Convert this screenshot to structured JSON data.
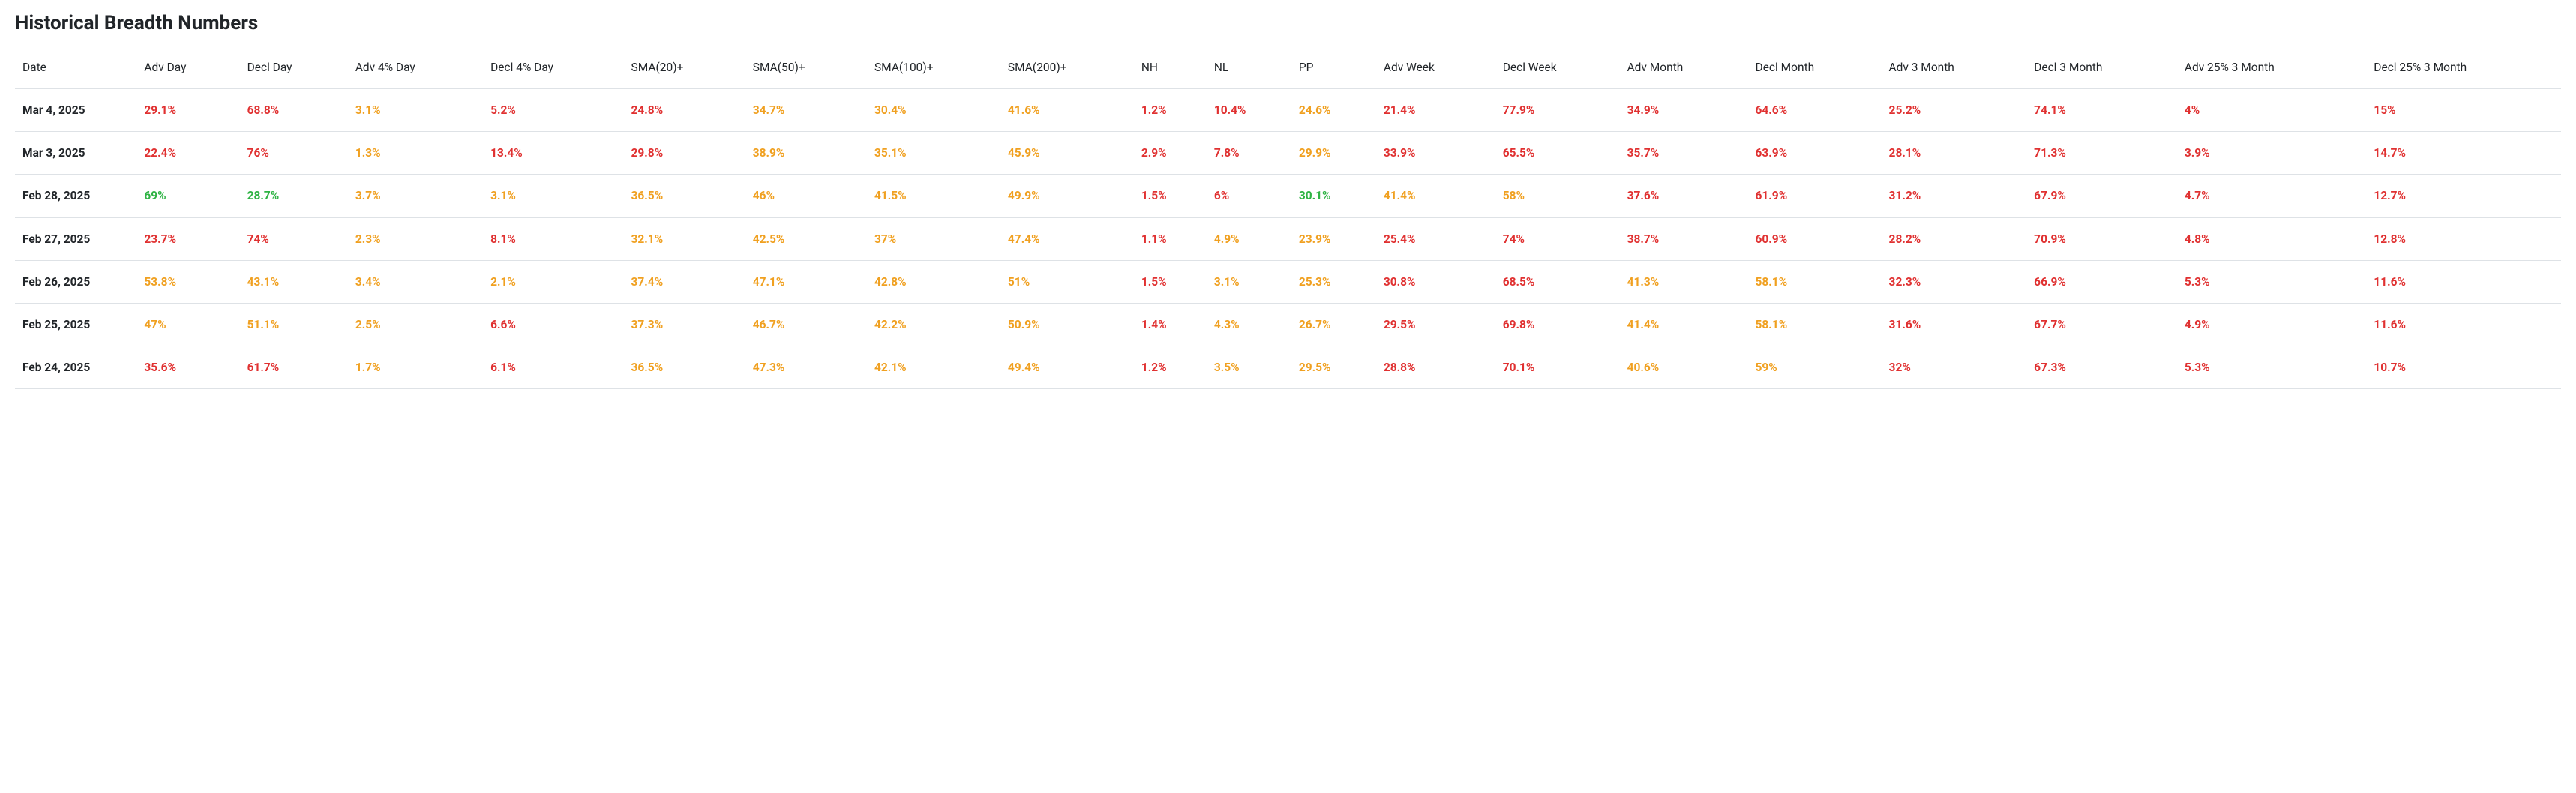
{
  "title": "Historical Breadth Numbers",
  "colors": {
    "red": "#e03131",
    "yellow": "#f0a020",
    "green": "#2fb344",
    "black": "#212529",
    "border": "#dee2e6",
    "background": "#ffffff"
  },
  "table": {
    "columns": [
      {
        "key": "date",
        "label": "Date"
      },
      {
        "key": "adv_day",
        "label": "Adv Day"
      },
      {
        "key": "decl_day",
        "label": "Decl Day"
      },
      {
        "key": "adv_4_day",
        "label": "Adv 4% Day"
      },
      {
        "key": "decl_4_day",
        "label": "Decl 4% Day"
      },
      {
        "key": "sma20",
        "label": "SMA(20)+"
      },
      {
        "key": "sma50",
        "label": "SMA(50)+"
      },
      {
        "key": "sma100",
        "label": "SMA(100)+"
      },
      {
        "key": "sma200",
        "label": "SMA(200)+"
      },
      {
        "key": "nh",
        "label": "NH"
      },
      {
        "key": "nl",
        "label": "NL"
      },
      {
        "key": "pp",
        "label": "PP"
      },
      {
        "key": "adv_week",
        "label": "Adv Week"
      },
      {
        "key": "decl_week",
        "label": "Decl Week"
      },
      {
        "key": "adv_month",
        "label": "Adv Month"
      },
      {
        "key": "decl_month",
        "label": "Decl Month"
      },
      {
        "key": "adv_3m",
        "label": "Adv 3 Month"
      },
      {
        "key": "decl_3m",
        "label": "Decl 3 Month"
      },
      {
        "key": "adv_25_3m",
        "label": "Adv 25% 3 Month"
      },
      {
        "key": "decl_25_3m",
        "label": "Decl 25% 3 Month"
      }
    ],
    "rows": [
      {
        "date": "Mar 4, 2025",
        "cells": [
          {
            "v": "29.1%",
            "c": "red"
          },
          {
            "v": "68.8%",
            "c": "red"
          },
          {
            "v": "3.1%",
            "c": "yellow"
          },
          {
            "v": "5.2%",
            "c": "red"
          },
          {
            "v": "24.8%",
            "c": "red"
          },
          {
            "v": "34.7%",
            "c": "yellow"
          },
          {
            "v": "30.4%",
            "c": "yellow"
          },
          {
            "v": "41.6%",
            "c": "yellow"
          },
          {
            "v": "1.2%",
            "c": "red"
          },
          {
            "v": "10.4%",
            "c": "red"
          },
          {
            "v": "24.6%",
            "c": "yellow"
          },
          {
            "v": "21.4%",
            "c": "red"
          },
          {
            "v": "77.9%",
            "c": "red"
          },
          {
            "v": "34.9%",
            "c": "red"
          },
          {
            "v": "64.6%",
            "c": "red"
          },
          {
            "v": "25.2%",
            "c": "red"
          },
          {
            "v": "74.1%",
            "c": "red"
          },
          {
            "v": "4%",
            "c": "red"
          },
          {
            "v": "15%",
            "c": "red"
          }
        ]
      },
      {
        "date": "Mar 3, 2025",
        "cells": [
          {
            "v": "22.4%",
            "c": "red"
          },
          {
            "v": "76%",
            "c": "red"
          },
          {
            "v": "1.3%",
            "c": "yellow"
          },
          {
            "v": "13.4%",
            "c": "red"
          },
          {
            "v": "29.8%",
            "c": "red"
          },
          {
            "v": "38.9%",
            "c": "yellow"
          },
          {
            "v": "35.1%",
            "c": "yellow"
          },
          {
            "v": "45.9%",
            "c": "yellow"
          },
          {
            "v": "2.9%",
            "c": "red"
          },
          {
            "v": "7.8%",
            "c": "red"
          },
          {
            "v": "29.9%",
            "c": "yellow"
          },
          {
            "v": "33.9%",
            "c": "red"
          },
          {
            "v": "65.5%",
            "c": "red"
          },
          {
            "v": "35.7%",
            "c": "red"
          },
          {
            "v": "63.9%",
            "c": "red"
          },
          {
            "v": "28.1%",
            "c": "red"
          },
          {
            "v": "71.3%",
            "c": "red"
          },
          {
            "v": "3.9%",
            "c": "red"
          },
          {
            "v": "14.7%",
            "c": "red"
          }
        ]
      },
      {
        "date": "Feb 28, 2025",
        "cells": [
          {
            "v": "69%",
            "c": "green"
          },
          {
            "v": "28.7%",
            "c": "green"
          },
          {
            "v": "3.7%",
            "c": "yellow"
          },
          {
            "v": "3.1%",
            "c": "yellow"
          },
          {
            "v": "36.5%",
            "c": "yellow"
          },
          {
            "v": "46%",
            "c": "yellow"
          },
          {
            "v": "41.5%",
            "c": "yellow"
          },
          {
            "v": "49.9%",
            "c": "yellow"
          },
          {
            "v": "1.5%",
            "c": "red"
          },
          {
            "v": "6%",
            "c": "red"
          },
          {
            "v": "30.1%",
            "c": "green"
          },
          {
            "v": "41.4%",
            "c": "yellow"
          },
          {
            "v": "58%",
            "c": "yellow"
          },
          {
            "v": "37.6%",
            "c": "red"
          },
          {
            "v": "61.9%",
            "c": "red"
          },
          {
            "v": "31.2%",
            "c": "red"
          },
          {
            "v": "67.9%",
            "c": "red"
          },
          {
            "v": "4.7%",
            "c": "red"
          },
          {
            "v": "12.7%",
            "c": "red"
          }
        ]
      },
      {
        "date": "Feb 27, 2025",
        "cells": [
          {
            "v": "23.7%",
            "c": "red"
          },
          {
            "v": "74%",
            "c": "red"
          },
          {
            "v": "2.3%",
            "c": "yellow"
          },
          {
            "v": "8.1%",
            "c": "red"
          },
          {
            "v": "32.1%",
            "c": "yellow"
          },
          {
            "v": "42.5%",
            "c": "yellow"
          },
          {
            "v": "37%",
            "c": "yellow"
          },
          {
            "v": "47.4%",
            "c": "yellow"
          },
          {
            "v": "1.1%",
            "c": "red"
          },
          {
            "v": "4.9%",
            "c": "yellow"
          },
          {
            "v": "23.9%",
            "c": "yellow"
          },
          {
            "v": "25.4%",
            "c": "red"
          },
          {
            "v": "74%",
            "c": "red"
          },
          {
            "v": "38.7%",
            "c": "red"
          },
          {
            "v": "60.9%",
            "c": "red"
          },
          {
            "v": "28.2%",
            "c": "red"
          },
          {
            "v": "70.9%",
            "c": "red"
          },
          {
            "v": "4.8%",
            "c": "red"
          },
          {
            "v": "12.8%",
            "c": "red"
          }
        ]
      },
      {
        "date": "Feb 26, 2025",
        "cells": [
          {
            "v": "53.8%",
            "c": "yellow"
          },
          {
            "v": "43.1%",
            "c": "yellow"
          },
          {
            "v": "3.4%",
            "c": "yellow"
          },
          {
            "v": "2.1%",
            "c": "yellow"
          },
          {
            "v": "37.4%",
            "c": "yellow"
          },
          {
            "v": "47.1%",
            "c": "yellow"
          },
          {
            "v": "42.8%",
            "c": "yellow"
          },
          {
            "v": "51%",
            "c": "yellow"
          },
          {
            "v": "1.5%",
            "c": "red"
          },
          {
            "v": "3.1%",
            "c": "yellow"
          },
          {
            "v": "25.3%",
            "c": "yellow"
          },
          {
            "v": "30.8%",
            "c": "red"
          },
          {
            "v": "68.5%",
            "c": "red"
          },
          {
            "v": "41.3%",
            "c": "yellow"
          },
          {
            "v": "58.1%",
            "c": "yellow"
          },
          {
            "v": "32.3%",
            "c": "red"
          },
          {
            "v": "66.9%",
            "c": "red"
          },
          {
            "v": "5.3%",
            "c": "red"
          },
          {
            "v": "11.6%",
            "c": "red"
          }
        ]
      },
      {
        "date": "Feb 25, 2025",
        "cells": [
          {
            "v": "47%",
            "c": "yellow"
          },
          {
            "v": "51.1%",
            "c": "yellow"
          },
          {
            "v": "2.5%",
            "c": "yellow"
          },
          {
            "v": "6.6%",
            "c": "red"
          },
          {
            "v": "37.3%",
            "c": "yellow"
          },
          {
            "v": "46.7%",
            "c": "yellow"
          },
          {
            "v": "42.2%",
            "c": "yellow"
          },
          {
            "v": "50.9%",
            "c": "yellow"
          },
          {
            "v": "1.4%",
            "c": "red"
          },
          {
            "v": "4.3%",
            "c": "yellow"
          },
          {
            "v": "26.7%",
            "c": "yellow"
          },
          {
            "v": "29.5%",
            "c": "red"
          },
          {
            "v": "69.8%",
            "c": "red"
          },
          {
            "v": "41.4%",
            "c": "yellow"
          },
          {
            "v": "58.1%",
            "c": "yellow"
          },
          {
            "v": "31.6%",
            "c": "red"
          },
          {
            "v": "67.7%",
            "c": "red"
          },
          {
            "v": "4.9%",
            "c": "red"
          },
          {
            "v": "11.6%",
            "c": "red"
          }
        ]
      },
      {
        "date": "Feb 24, 2025",
        "cells": [
          {
            "v": "35.6%",
            "c": "red"
          },
          {
            "v": "61.7%",
            "c": "red"
          },
          {
            "v": "1.7%",
            "c": "yellow"
          },
          {
            "v": "6.1%",
            "c": "red"
          },
          {
            "v": "36.5%",
            "c": "yellow"
          },
          {
            "v": "47.3%",
            "c": "yellow"
          },
          {
            "v": "42.1%",
            "c": "yellow"
          },
          {
            "v": "49.4%",
            "c": "yellow"
          },
          {
            "v": "1.2%",
            "c": "red"
          },
          {
            "v": "3.5%",
            "c": "yellow"
          },
          {
            "v": "29.5%",
            "c": "yellow"
          },
          {
            "v": "28.8%",
            "c": "red"
          },
          {
            "v": "70.1%",
            "c": "red"
          },
          {
            "v": "40.6%",
            "c": "yellow"
          },
          {
            "v": "59%",
            "c": "yellow"
          },
          {
            "v": "32%",
            "c": "red"
          },
          {
            "v": "67.3%",
            "c": "red"
          },
          {
            "v": "5.3%",
            "c": "red"
          },
          {
            "v": "10.7%",
            "c": "red"
          }
        ]
      }
    ]
  }
}
